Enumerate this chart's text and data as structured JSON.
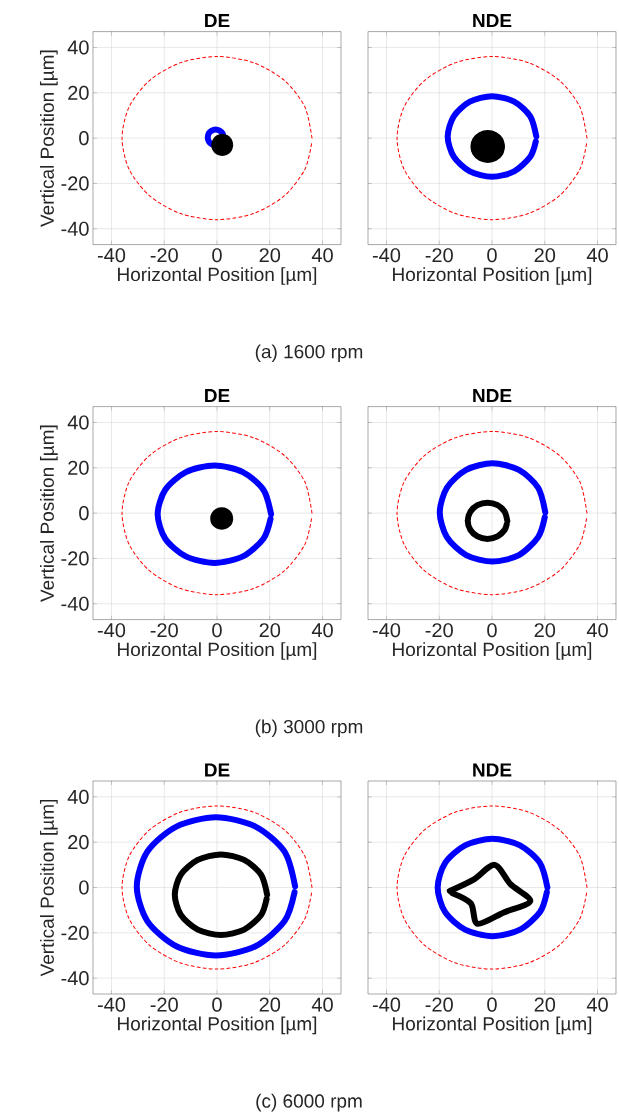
{
  "chart_data": [
    {
      "type": "line",
      "title": "DE",
      "xlabel": "Horizontal Position [µm]",
      "ylabel": "Vertical Position [µm]",
      "xlim": [
        -47,
        47
      ],
      "ylim": [
        -47,
        47
      ],
      "xticks": [
        -40,
        -20,
        0,
        20,
        40
      ],
      "yticks": [
        -40,
        -20,
        0,
        20,
        40
      ],
      "grid": true,
      "annotations": [
        "(a) 1600 rpm"
      ],
      "series": [
        {
          "color": "#ff0000",
          "line_style": "dashed",
          "x": [
            36,
            33.3,
            25.5,
            13.8,
            0,
            -13.8,
            -25.5,
            -33.3,
            -36,
            -33.3,
            -25.5,
            -13.8,
            0,
            13.8,
            25.5,
            33.3,
            35.9
          ],
          "values": [
            0,
            13.8,
            25.5,
            33.3,
            36,
            33.3,
            25.5,
            13.8,
            0,
            -13.8,
            -25.5,
            -33.3,
            -36,
            -33.3,
            -25.5,
            -13.8,
            -2
          ]
        },
        {
          "color": "#0000ff",
          "x": [
            2.5,
            2.1,
            1,
            -0.5,
            -2,
            -3.1,
            -3.5,
            -3.1,
            -2,
            -0.5
          ],
          "values": [
            0.3,
            2.1,
            3.3,
            3.8,
            3.3,
            2.1,
            0.3,
            -1.5,
            -2.7,
            -3.2
          ]
        },
        {
          "type": "area",
          "color": "#000000",
          "x": [
            5.8,
            5.3,
            3.9,
            2,
            0.1,
            -1.3,
            -1.8,
            -1.3,
            0.1,
            2,
            3.9,
            5.3,
            5.8
          ],
          "values": [
            -3,
            -0.8,
            0.9,
            1.5,
            0.9,
            -0.8,
            -3,
            -5.3,
            -6.9,
            -7.5,
            -6.9,
            -5.3,
            -3
          ]
        }
      ]
    },
    {
      "type": "line",
      "title": "NDE",
      "xlabel": "Horizontal Position [µm]",
      "xlim": [
        -47,
        47
      ],
      "ylim": [
        -47,
        47
      ],
      "xticks": [
        -40,
        -20,
        0,
        20,
        40
      ],
      "yticks": [
        -40,
        -20,
        0,
        20,
        40
      ],
      "grid": true,
      "tick_labels": "x",
      "series": [
        {
          "color": "#ff0000",
          "line_style": "dashed",
          "x": [
            36,
            33.3,
            25.5,
            13.8,
            0,
            -13.8,
            -25.5,
            -33.3,
            -36,
            -33.3,
            -25.5,
            -13.8,
            0,
            13.8,
            25.5,
            33.3,
            35.9
          ],
          "values": [
            0,
            13.8,
            25.5,
            33.3,
            36,
            33.3,
            25.5,
            13.8,
            0,
            -13.8,
            -25.5,
            -33.3,
            -36,
            -33.3,
            -25.5,
            -13.8,
            -2
          ]
        },
        {
          "color": "#0000ff",
          "x": [
            16.8,
            14.5,
            8.4,
            0,
            -8.4,
            -14.5,
            -16.8,
            -14.5,
            -8.4,
            0,
            8.4,
            14.5,
            16.6
          ],
          "values": [
            0.7,
            9.6,
            16.1,
            18.5,
            16.1,
            9.6,
            0.7,
            -8.2,
            -14.7,
            -17.1,
            -14.7,
            -8.2,
            -1.5
          ]
        },
        {
          "type": "area",
          "color": "#000000",
          "x": [
            4.6,
            3.8,
            1.5,
            -1.6,
            -4.7,
            -7,
            -7.8,
            -7,
            -4.7,
            -1.6,
            1.5,
            3.8,
            4.6
          ],
          "values": [
            -3.7,
            -0.3,
            2.2,
            3.1,
            2.2,
            -0.3,
            -3.7,
            -7.1,
            -9.6,
            -10.5,
            -9.6,
            -7.1,
            -3.7
          ]
        }
      ]
    },
    {
      "type": "line",
      "title": "DE",
      "xlabel": "Horizontal Position [µm]",
      "ylabel": "Vertical Position [µm]",
      "xlim": [
        -47,
        47
      ],
      "ylim": [
        -47,
        47
      ],
      "xticks": [
        -40,
        -20,
        0,
        20,
        40
      ],
      "yticks": [
        -40,
        -20,
        0,
        20,
        40
      ],
      "grid": true,
      "annotations": [
        "(b) 3000 rpm"
      ],
      "series": [
        {
          "color": "#ff0000",
          "line_style": "dashed",
          "x": [
            36,
            33.3,
            25.5,
            13.8,
            0,
            -13.8,
            -25.5,
            -33.3,
            -36,
            -33.3,
            -25.5,
            -13.8,
            0,
            13.8,
            25.5,
            33.3,
            35.9
          ],
          "values": [
            0,
            13.8,
            25.5,
            33.3,
            36,
            33.3,
            25.5,
            13.8,
            0,
            -13.8,
            -25.5,
            -33.3,
            -36,
            -33.3,
            -25.5,
            -13.8,
            -2
          ]
        },
        {
          "color": "#0000ff",
          "x": [
            20.5,
            17.6,
            9.8,
            -1,
            -11.8,
            -19.6,
            -22.5,
            -19.6,
            -11.8,
            -1,
            9.8,
            17.6,
            20.3
          ],
          "values": [
            -0.5,
            10.3,
            18.1,
            21,
            18.1,
            10.3,
            -0.5,
            -11.3,
            -19.1,
            -22,
            -19.1,
            -11.3,
            -2.5
          ]
        },
        {
          "type": "area",
          "color": "#000000",
          "x": [
            5.8,
            5.3,
            3.8,
            1.8,
            -0.2,
            -1.7,
            -2.2,
            -1.7,
            -0.2,
            1.8,
            3.8,
            5.3,
            5.8
          ],
          "values": [
            -2.4,
            -0.2,
            1.5,
            2.1,
            1.5,
            -0.2,
            -2.4,
            -4.7,
            -6.3,
            -6.9,
            -6.3,
            -4.7,
            -2.4
          ]
        }
      ]
    },
    {
      "type": "line",
      "title": "NDE",
      "xlabel": "Horizontal Position [µm]",
      "xlim": [
        -47,
        47
      ],
      "ylim": [
        -47,
        47
      ],
      "xticks": [
        -40,
        -20,
        0,
        20,
        40
      ],
      "yticks": [
        -40,
        -20,
        0,
        20,
        40
      ],
      "grid": true,
      "tick_labels": "x",
      "series": [
        {
          "color": "#ff0000",
          "line_style": "dashed",
          "x": [
            36,
            33.3,
            25.5,
            13.8,
            0,
            -13.8,
            -25.5,
            -33.3,
            -36,
            -33.3,
            -25.5,
            -13.8,
            0,
            13.8,
            25.5,
            33.3,
            35.9
          ],
          "values": [
            0,
            13.8,
            25.5,
            33.3,
            36,
            33.3,
            25.5,
            13.8,
            0,
            -13.8,
            -25.5,
            -33.3,
            -36,
            -33.3,
            -25.5,
            -13.8,
            -2
          ]
        },
        {
          "color": "#0000ff",
          "x": [
            20.2,
            17.5,
            10.2,
            0.2,
            -9.8,
            -17.1,
            -19.8,
            -17.1,
            -9.8,
            0.2,
            10.2,
            17.5,
            20
          ],
          "values": [
            0.3,
            11.2,
            19.1,
            22,
            19.1,
            11.2,
            0.3,
            -10.6,
            -18.5,
            -21.4,
            -18.5,
            -10.6,
            -1.8
          ]
        },
        {
          "color": "#000000",
          "x": [
            5.8,
            4.8,
            2.1,
            -1.7,
            -5.5,
            -8.2,
            -9.2,
            -8.2,
            -5.5,
            -1.7,
            2.1,
            4.8,
            5.6
          ],
          "values": [
            -3.4,
            0.6,
            3.5,
            4.6,
            3.5,
            0.6,
            -3.4,
            -7.4,
            -10.3,
            -11.4,
            -10.3,
            -7.4,
            -4.8
          ]
        }
      ]
    },
    {
      "type": "line",
      "title": "DE",
      "xlabel": "Horizontal Position [µm]",
      "ylabel": "Vertical Position [µm]",
      "xlim": [
        -47,
        47
      ],
      "ylim": [
        -47,
        47
      ],
      "xticks": [
        -40,
        -20,
        0,
        20,
        40
      ],
      "yticks": [
        -40,
        -20,
        0,
        20,
        40
      ],
      "grid": true,
      "annotations": [
        "(c) 6000 rpm"
      ],
      "series": [
        {
          "color": "#ff0000",
          "line_style": "dashed",
          "x": [
            36,
            33.3,
            25.5,
            13.8,
            0,
            -13.8,
            -25.5,
            -33.3,
            -36,
            -33.3,
            -25.5,
            -13.8,
            0,
            13.8,
            25.5,
            33.3,
            35.9
          ],
          "values": [
            0,
            13.8,
            25.5,
            33.3,
            36,
            33.3,
            25.5,
            13.8,
            0,
            -13.8,
            -25.5,
            -33.3,
            -36,
            -33.3,
            -25.5,
            -13.8,
            -2
          ]
        },
        {
          "color": "#0000ff",
          "x": [
            29.6,
            25.6,
            14.6,
            -0.4,
            -15.4,
            -26.4,
            -30.4,
            -26.4,
            -15.4,
            -0.4,
            14.6,
            25.6,
            29.4
          ],
          "values": [
            0.5,
            15.8,
            26.9,
            31,
            26.9,
            15.8,
            0.5,
            -14.8,
            -25.9,
            -30,
            -25.9,
            -14.8,
            -2
          ]
        },
        {
          "color": "#000000",
          "x": [
            19,
            16.7,
            10.3,
            1.5,
            -7.3,
            -13.7,
            -16,
            -13.7,
            -7.3,
            1.5,
            10.3,
            16.7,
            18.8
          ],
          "values": [
            -3.2,
            5.7,
            12.2,
            14.6,
            12.2,
            5.7,
            -3.2,
            -12.1,
            -18.6,
            -21,
            -18.6,
            -12.1,
            -5
          ]
        }
      ]
    },
    {
      "type": "line",
      "title": "NDE",
      "xlabel": "Horizontal Position [µm]",
      "xlim": [
        -47,
        47
      ],
      "ylim": [
        -47,
        47
      ],
      "xticks": [
        -40,
        -20,
        0,
        20,
        40
      ],
      "yticks": [
        -40,
        -20,
        0,
        20,
        40
      ],
      "grid": true,
      "tick_labels": "x",
      "series": [
        {
          "color": "#ff0000",
          "line_style": "dashed",
          "x": [
            36,
            33.3,
            25.5,
            13.8,
            0,
            -13.8,
            -25.5,
            -33.3,
            -36,
            -33.3,
            -25.5,
            -13.8,
            0,
            13.8,
            25.5,
            33.3,
            35.9
          ],
          "values": [
            0,
            13.8,
            25.5,
            33.3,
            36,
            33.3,
            25.5,
            13.8,
            0,
            -13.8,
            -25.5,
            -33.3,
            -36,
            -33.3,
            -25.5,
            -13.8,
            -2
          ]
        },
        {
          "color": "#0000ff",
          "x": [
            21,
            18.2,
            10.6,
            0.2,
            -10.2,
            -17.8,
            -20.6,
            -17.8,
            -10.2,
            0.2,
            10.6,
            18.2,
            20.8
          ],
          "values": [
            0,
            10.8,
            18.6,
            21.5,
            18.6,
            10.8,
            0,
            -10.8,
            -18.6,
            -21.5,
            -18.6,
            -10.8,
            -2
          ]
        },
        {
          "color": "#000000",
          "x": [
            -16,
            -7,
            1,
            7,
            14.5,
            4.5,
            -5.5,
            -8,
            -15
          ],
          "values": [
            -1.5,
            3.5,
            10,
            1.5,
            -6,
            -11,
            -16,
            -7,
            -2.5
          ]
        }
      ]
    }
  ]
}
